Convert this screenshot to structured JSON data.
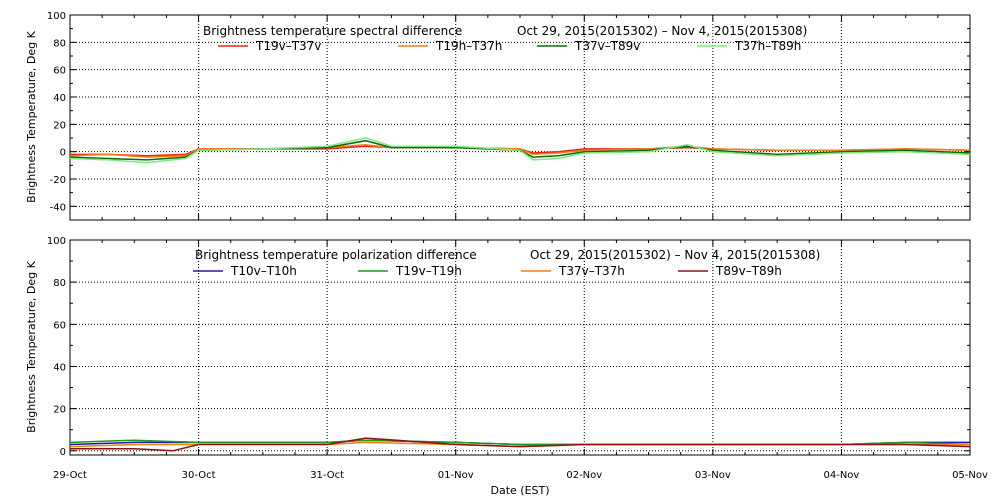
{
  "chart_data": [
    {
      "type": "line",
      "title": "Brightness temperature spectral difference",
      "date_range": "Oct 29, 2015(2015302) – Nov  4, 2015(2015308)",
      "ylabel": "Brightness Temperature, Deg K",
      "xlabel": "",
      "ylim": [
        -50,
        100
      ],
      "yticks": [
        -40,
        -20,
        0,
        20,
        40,
        60,
        80,
        100
      ],
      "x_domain": [
        0,
        7
      ],
      "grid": true,
      "legend_position": "top",
      "series": [
        {
          "name": "T19v–T37v",
          "color": "#e8231c",
          "points": [
            [
              0,
              -2
            ],
            [
              0.3,
              -2
            ],
            [
              0.6,
              -3
            ],
            [
              0.9,
              -2
            ],
            [
              1.0,
              2
            ],
            [
              1.5,
              2
            ],
            [
              2.0,
              2
            ],
            [
              2.3,
              4
            ],
            [
              2.5,
              3
            ],
            [
              3.0,
              3
            ],
            [
              3.5,
              2
            ],
            [
              3.6,
              -1
            ],
            [
              3.8,
              0
            ],
            [
              4.0,
              2
            ],
            [
              4.5,
              2
            ],
            [
              4.8,
              3
            ],
            [
              5.0,
              2
            ],
            [
              5.5,
              1
            ],
            [
              6.0,
              1
            ],
            [
              6.5,
              2
            ],
            [
              7.0,
              1
            ]
          ]
        },
        {
          "name": "T19h–T37h",
          "color": "#f07f12",
          "points": [
            [
              0,
              -3
            ],
            [
              0.3,
              -2
            ],
            [
              0.6,
              -4
            ],
            [
              0.9,
              -3
            ],
            [
              1.0,
              2
            ],
            [
              1.5,
              2
            ],
            [
              2.0,
              3
            ],
            [
              2.3,
              5
            ],
            [
              2.5,
              3
            ],
            [
              3.0,
              3
            ],
            [
              3.5,
              2
            ],
            [
              3.6,
              -2
            ],
            [
              3.8,
              -1
            ],
            [
              4.0,
              1
            ],
            [
              4.5,
              2
            ],
            [
              4.8,
              4
            ],
            [
              5.0,
              2
            ],
            [
              5.5,
              1
            ],
            [
              6.0,
              1
            ],
            [
              6.5,
              2
            ],
            [
              7.0,
              1
            ]
          ]
        },
        {
          "name": "T37v–T89v",
          "color": "#0b6b0b",
          "points": [
            [
              0,
              -4
            ],
            [
              0.3,
              -5
            ],
            [
              0.6,
              -6
            ],
            [
              0.9,
              -4
            ],
            [
              1.0,
              1
            ],
            [
              1.5,
              2
            ],
            [
              2.0,
              3
            ],
            [
              2.3,
              8
            ],
            [
              2.5,
              3
            ],
            [
              3.0,
              3
            ],
            [
              3.5,
              1
            ],
            [
              3.6,
              -4
            ],
            [
              3.8,
              -3
            ],
            [
              4.0,
              0
            ],
            [
              4.5,
              1
            ],
            [
              4.8,
              4
            ],
            [
              5.0,
              1
            ],
            [
              5.5,
              -2
            ],
            [
              6.0,
              0
            ],
            [
              6.5,
              1
            ],
            [
              7.0,
              -1
            ]
          ]
        },
        {
          "name": "T37h–T89h",
          "color": "#7ee87e",
          "points": [
            [
              0,
              -5
            ],
            [
              0.3,
              -6
            ],
            [
              0.6,
              -8
            ],
            [
              0.9,
              -5
            ],
            [
              1.0,
              1
            ],
            [
              1.5,
              2
            ],
            [
              2.0,
              4
            ],
            [
              2.3,
              10
            ],
            [
              2.5,
              4
            ],
            [
              3.0,
              4
            ],
            [
              3.5,
              1
            ],
            [
              3.6,
              -6
            ],
            [
              3.8,
              -5
            ],
            [
              4.0,
              -1
            ],
            [
              4.5,
              0
            ],
            [
              4.8,
              5
            ],
            [
              5.0,
              0
            ],
            [
              5.5,
              -3
            ],
            [
              6.0,
              -1
            ],
            [
              6.5,
              0
            ],
            [
              7.0,
              -2
            ]
          ]
        }
      ]
    },
    {
      "type": "line",
      "title": "Brightness temperature polarization difference",
      "date_range": "Oct 29, 2015(2015302) – Nov  4, 2015(2015308)",
      "ylabel": "Brightness Temperature, Deg K",
      "xlabel": "Date (EST)",
      "ylim": [
        -2,
        100
      ],
      "yticks": [
        0,
        20,
        40,
        60,
        80,
        100
      ],
      "x_domain": [
        0,
        7
      ],
      "xticks": [
        "29-Oct",
        "30-Oct",
        "31-Oct",
        "01-Nov",
        "02-Nov",
        "03-Nov",
        "04-Nov",
        "05-Nov"
      ],
      "grid": true,
      "legend_position": "top",
      "series": [
        {
          "name": "T10v–T10h",
          "color": "#1c1ca8",
          "points": [
            [
              0,
              3
            ],
            [
              0.5,
              4
            ],
            [
              1.0,
              4
            ],
            [
              1.5,
              4
            ],
            [
              2.0,
              4
            ],
            [
              2.3,
              5
            ],
            [
              3.0,
              4
            ],
            [
              3.5,
              3
            ],
            [
              4.0,
              3
            ],
            [
              4.5,
              3
            ],
            [
              5.0,
              3
            ],
            [
              5.5,
              3
            ],
            [
              6.0,
              3
            ],
            [
              6.5,
              4
            ],
            [
              7.0,
              4
            ]
          ]
        },
        {
          "name": "T19v–T19h",
          "color": "#1c9c1c",
          "points": [
            [
              0,
              4
            ],
            [
              0.5,
              5
            ],
            [
              1.0,
              4
            ],
            [
              1.5,
              4
            ],
            [
              2.0,
              4
            ],
            [
              2.3,
              5
            ],
            [
              3.0,
              4
            ],
            [
              3.5,
              3
            ],
            [
              4.0,
              3
            ],
            [
              4.5,
              3
            ],
            [
              5.0,
              3
            ],
            [
              5.5,
              3
            ],
            [
              6.0,
              3
            ],
            [
              6.5,
              4
            ],
            [
              7.0,
              3
            ]
          ]
        },
        {
          "name": "T37v–T37h",
          "color": "#f07f12",
          "points": [
            [
              0,
              2
            ],
            [
              0.5,
              3
            ],
            [
              1.0,
              3
            ],
            [
              1.5,
              3
            ],
            [
              2.0,
              3
            ],
            [
              2.3,
              4
            ],
            [
              3.0,
              3
            ],
            [
              3.5,
              2
            ],
            [
              4.0,
              3
            ],
            [
              4.5,
              3
            ],
            [
              5.0,
              3
            ],
            [
              5.5,
              3
            ],
            [
              6.0,
              3
            ],
            [
              6.5,
              3
            ],
            [
              7.0,
              3
            ]
          ]
        },
        {
          "name": "T89v–T89h",
          "color": "#8a1212",
          "points": [
            [
              0,
              1
            ],
            [
              0.5,
              1
            ],
            [
              0.8,
              0
            ],
            [
              1.0,
              3
            ],
            [
              1.5,
              3
            ],
            [
              2.0,
              3
            ],
            [
              2.3,
              6
            ],
            [
              3.0,
              3
            ],
            [
              3.5,
              2
            ],
            [
              4.0,
              3
            ],
            [
              4.5,
              3
            ],
            [
              5.0,
              3
            ],
            [
              5.5,
              3
            ],
            [
              6.0,
              3
            ],
            [
              6.5,
              3
            ],
            [
              7.0,
              2
            ]
          ]
        }
      ]
    }
  ]
}
